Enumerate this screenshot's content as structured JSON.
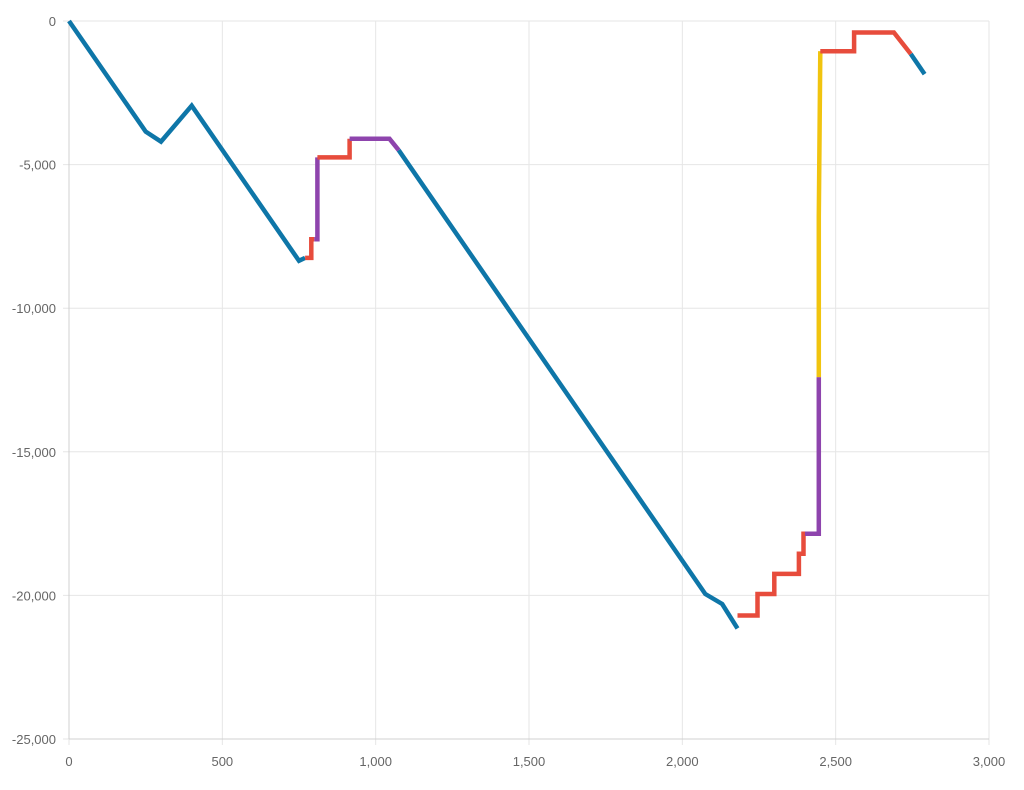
{
  "chart_data": {
    "type": "line",
    "title": "",
    "xlabel": "",
    "ylabel": "",
    "xlim": [
      0,
      3000
    ],
    "ylim": [
      -25000,
      0
    ],
    "x_ticks": [
      0,
      500,
      1000,
      1500,
      2000,
      2500,
      3000
    ],
    "x_tick_labels": [
      "0",
      "500",
      "1,000",
      "1,500",
      "2,000",
      "2,500",
      "3,000"
    ],
    "y_ticks": [
      0,
      -5000,
      -10000,
      -15000,
      -20000,
      -25000
    ],
    "y_tick_labels": [
      "0",
      "-5,000",
      "-10,000",
      "-15,000",
      "-20,000",
      "-25,000"
    ],
    "grid": true,
    "legend": "none",
    "colors": {
      "blue": "#0e76a8",
      "red": "#e74c3c",
      "purple": "#8e44ad",
      "yellow": "#f1c40f"
    },
    "segments": [
      {
        "color": "blue",
        "points": [
          [
            0,
            0
          ],
          [
            250,
            -3850
          ],
          [
            300,
            -4200
          ],
          [
            400,
            -2950
          ],
          [
            750,
            -8350
          ],
          [
            770,
            -8250
          ]
        ]
      },
      {
        "color": "red",
        "points": [
          [
            770,
            -8250
          ],
          [
            790,
            -8250
          ],
          [
            790,
            -7600
          ],
          [
            800,
            -7600
          ]
        ]
      },
      {
        "color": "purple",
        "points": [
          [
            800,
            -7600
          ],
          [
            810,
            -7600
          ],
          [
            810,
            -4750
          ]
        ]
      },
      {
        "color": "red",
        "points": [
          [
            810,
            -4750
          ],
          [
            915,
            -4750
          ],
          [
            915,
            -4100
          ]
        ]
      },
      {
        "color": "purple",
        "points": [
          [
            915,
            -4100
          ],
          [
            1045,
            -4100
          ],
          [
            1075,
            -4500
          ]
        ]
      },
      {
        "color": "blue",
        "points": [
          [
            1075,
            -4500
          ],
          [
            2075,
            -19950
          ],
          [
            2130,
            -20300
          ],
          [
            2180,
            -21150
          ]
        ]
      },
      {
        "color": "red",
        "points": [
          [
            2180,
            -20700
          ],
          [
            2245,
            -20700
          ],
          [
            2245,
            -19950
          ],
          [
            2300,
            -19950
          ],
          [
            2300,
            -19250
          ],
          [
            2380,
            -19250
          ],
          [
            2380,
            -18550
          ],
          [
            2395,
            -18550
          ],
          [
            2395,
            -17850
          ],
          [
            2400,
            -17850
          ]
        ]
      },
      {
        "color": "purple",
        "points": [
          [
            2400,
            -17850
          ],
          [
            2445,
            -17850
          ],
          [
            2445,
            -12400
          ]
        ]
      },
      {
        "color": "yellow",
        "points": [
          [
            2445,
            -12400
          ],
          [
            2445,
            -6800
          ],
          [
            2450,
            -1050
          ]
        ]
      },
      {
        "color": "red",
        "points": [
          [
            2450,
            -1050
          ],
          [
            2560,
            -1050
          ],
          [
            2560,
            -400
          ],
          [
            2690,
            -400
          ],
          [
            2745,
            -1150
          ]
        ]
      },
      {
        "color": "blue",
        "points": [
          [
            2745,
            -1150
          ],
          [
            2790,
            -1850
          ]
        ]
      }
    ]
  }
}
